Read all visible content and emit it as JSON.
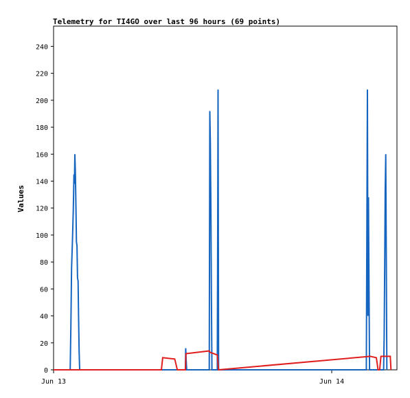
{
  "chart_data": {
    "type": "line",
    "title": "Telemetry for TI4GO over last 96 hours (69 points)",
    "ylabel": "Values",
    "xlabel": "",
    "ylim": [
      0,
      255
    ],
    "yticks": [
      0,
      20,
      40,
      60,
      80,
      100,
      120,
      140,
      160,
      180,
      200,
      220,
      240
    ],
    "xlim_hours": [
      0,
      25.8
    ],
    "xticks": [
      {
        "label": "Jun 13",
        "hour": 0
      },
      {
        "label": "Jun 14",
        "hour": 20.9
      }
    ],
    "grid": false,
    "series": [
      {
        "color": "#1565c0",
        "points": [
          [
            0,
            0
          ],
          [
            1.25,
            0
          ],
          [
            1.3,
            32
          ],
          [
            1.35,
            75
          ],
          [
            1.42,
            96
          ],
          [
            1.48,
            118
          ],
          [
            1.53,
            145
          ],
          [
            1.57,
            138
          ],
          [
            1.6,
            160
          ],
          [
            1.64,
            145
          ],
          [
            1.68,
            120
          ],
          [
            1.72,
            95
          ],
          [
            1.76,
            92
          ],
          [
            1.8,
            68
          ],
          [
            1.84,
            66
          ],
          [
            1.88,
            40
          ],
          [
            1.92,
            14
          ],
          [
            1.96,
            0
          ],
          [
            9.9,
            0
          ],
          [
            9.93,
            16
          ],
          [
            9.96,
            8
          ],
          [
            10.0,
            0
          ],
          [
            10.03,
            0
          ],
          [
            11.7,
            0
          ],
          [
            11.74,
            192
          ],
          [
            11.78,
            168
          ],
          [
            11.82,
            120
          ],
          [
            11.86,
            56
          ],
          [
            11.9,
            0
          ],
          [
            12.3,
            0
          ],
          [
            12.33,
            104
          ],
          [
            12.36,
            208
          ],
          [
            12.4,
            0
          ],
          [
            23.5,
            0
          ],
          [
            23.54,
            104
          ],
          [
            23.58,
            208
          ],
          [
            23.62,
            40
          ],
          [
            23.66,
            128
          ],
          [
            23.7,
            64
          ],
          [
            23.74,
            0
          ],
          [
            24.8,
            0
          ],
          [
            24.84,
            26
          ],
          [
            24.88,
            80
          ],
          [
            24.92,
            133
          ],
          [
            24.96,
            160
          ],
          [
            25.0,
            80
          ],
          [
            25.04,
            0
          ]
        ]
      },
      {
        "color": "#e01e1e",
        "points": [
          [
            0,
            0
          ],
          [
            8.1,
            0
          ],
          [
            8.2,
            9
          ],
          [
            9.1,
            8
          ],
          [
            9.3,
            0
          ],
          [
            9.9,
            0
          ],
          [
            9.95,
            12
          ],
          [
            11.7,
            14
          ],
          [
            11.75,
            13
          ],
          [
            12.3,
            11
          ],
          [
            12.4,
            0
          ],
          [
            23.8,
            10
          ],
          [
            24.25,
            9
          ],
          [
            24.38,
            0
          ],
          [
            24.5,
            0
          ],
          [
            24.6,
            10
          ],
          [
            25.3,
            10
          ],
          [
            25.35,
            0
          ]
        ]
      }
    ]
  }
}
